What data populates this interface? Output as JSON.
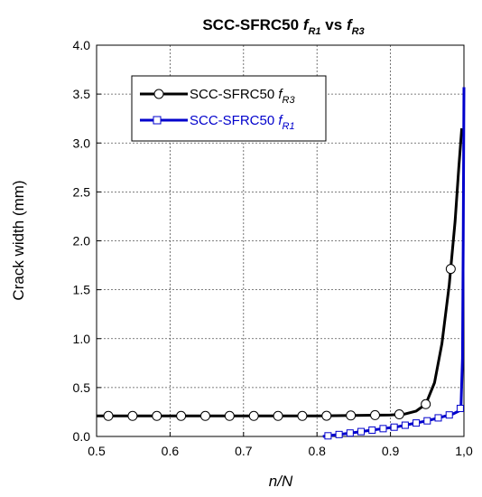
{
  "chart_data": {
    "type": "line",
    "title": {
      "main": "SCC-SFRC50",
      "f1": "f",
      "f1_sub": "R1",
      "vs": "vs",
      "f2": "f",
      "f2_sub": "R3"
    },
    "xlabel": "n/N",
    "ylabel": "Crack width (mm)",
    "xlim": [
      0.5,
      1.0
    ],
    "ylim": [
      0.0,
      4.0
    ],
    "x_ticks": [
      "0.5",
      "0.6",
      "0.7",
      "0.8",
      "0.9",
      "1,0"
    ],
    "y_ticks": [
      "0.0",
      "0.5",
      "1.0",
      "1.5",
      "2.0",
      "2.5",
      "3.0",
      "3.5",
      "4.0"
    ],
    "grid": true,
    "legend_position": "upper-left",
    "series": [
      {
        "name": "SCC-SFRC50",
        "name_italic": "f",
        "name_sub": "R3",
        "color": "#000000",
        "marker": "circle",
        "points": [
          [
            0.5,
            0.21
          ],
          [
            0.6,
            0.21
          ],
          [
            0.7,
            0.21
          ],
          [
            0.8,
            0.21
          ],
          [
            0.85,
            0.215
          ],
          [
            0.9,
            0.22
          ],
          [
            0.92,
            0.23
          ],
          [
            0.935,
            0.26
          ],
          [
            0.948,
            0.33
          ],
          [
            0.96,
            0.55
          ],
          [
            0.97,
            0.95
          ],
          [
            0.98,
            1.55
          ],
          [
            0.988,
            2.2
          ],
          [
            0.993,
            2.75
          ],
          [
            0.997,
            3.15
          ]
        ],
        "marker_x": [
          0.516,
          0.549,
          0.582,
          0.615,
          0.648,
          0.681,
          0.714,
          0.747,
          0.78,
          0.813,
          0.846,
          0.879,
          0.912,
          0.948,
          0.982
        ]
      },
      {
        "name": "SCC-SFRC50",
        "name_italic": "f",
        "name_sub": "R1",
        "color": "#0000cc",
        "marker": "square",
        "points": [
          [
            0.808,
            0.0
          ],
          [
            0.83,
            0.02
          ],
          [
            0.85,
            0.04
          ],
          [
            0.87,
            0.06
          ],
          [
            0.89,
            0.08
          ],
          [
            0.91,
            0.1
          ],
          [
            0.93,
            0.13
          ],
          [
            0.95,
            0.16
          ],
          [
            0.97,
            0.2
          ],
          [
            0.985,
            0.23
          ],
          [
            0.993,
            0.26
          ],
          [
            0.996,
            0.3
          ],
          [
            0.998,
            0.8
          ],
          [
            0.999,
            2.0
          ],
          [
            1.0,
            3.57
          ]
        ],
        "marker_x": [
          0.815,
          0.83,
          0.845,
          0.86,
          0.875,
          0.89,
          0.905,
          0.92,
          0.935,
          0.95,
          0.965,
          0.98,
          0.995
        ]
      }
    ]
  }
}
